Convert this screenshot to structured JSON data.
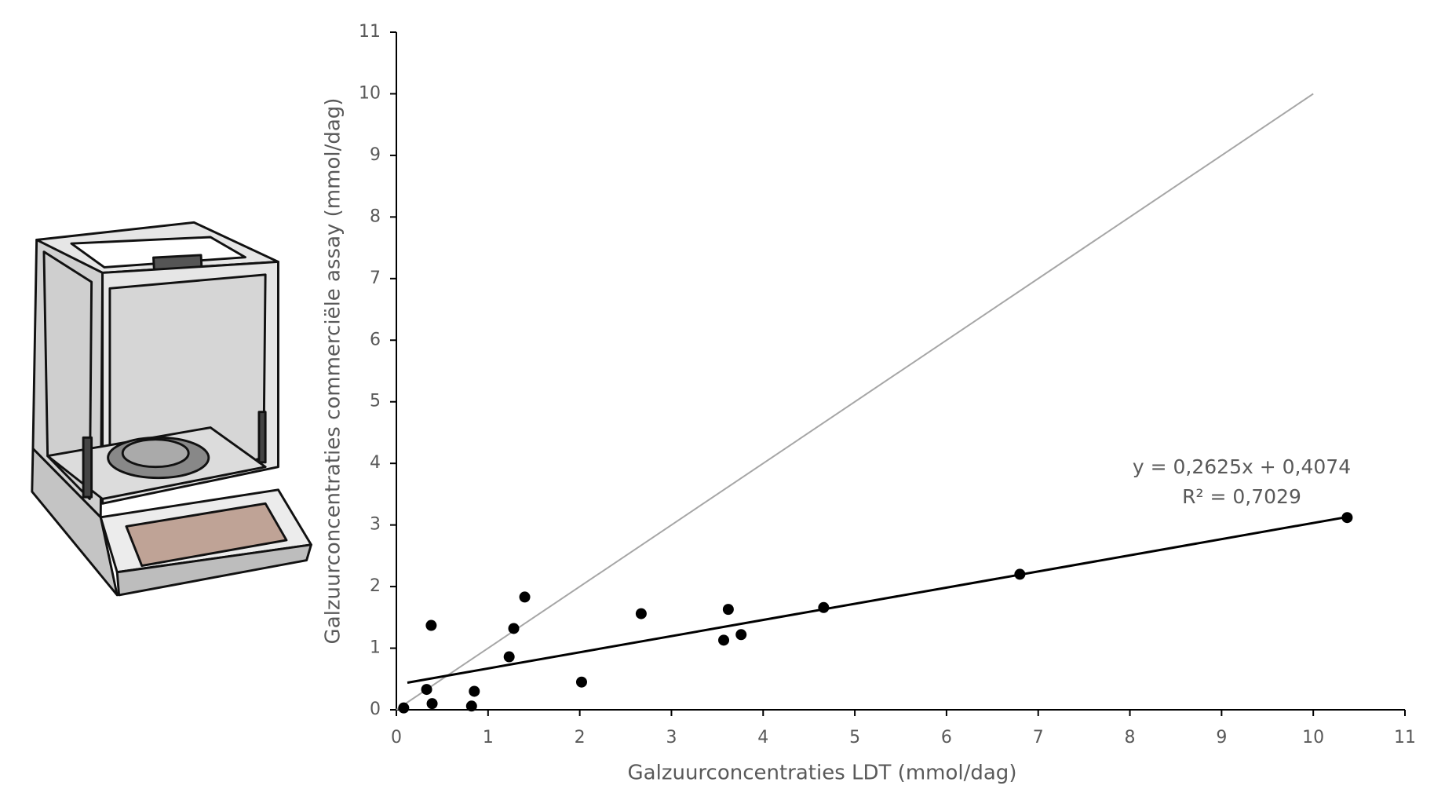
{
  "chart_data": {
    "type": "scatter",
    "x_label": "Galzuurconcentraties LDT (mmol/dag)",
    "y_label": "Galzuurconcentraties commerciële assay (mmol/dag)",
    "annotations": [
      "y = 0,2625x + 0,4074",
      "R² = 0,7029"
    ],
    "color": "#000000",
    "x": [
      0.08,
      0.33,
      0.38,
      0.39,
      0.82,
      0.85,
      1.23,
      1.28,
      1.4,
      2.02,
      2.67,
      3.57,
      3.62,
      3.76,
      4.66,
      6.8,
      10.37
    ],
    "values": [
      0.03,
      0.33,
      1.37,
      0.1,
      0.06,
      0.3,
      0.86,
      1.32,
      1.83,
      0.45,
      1.56,
      1.13,
      1.63,
      1.22,
      1.66,
      2.2,
      3.12
    ],
    "trendline": {
      "x": [
        0.12,
        10.37
      ],
      "y": [
        0.44,
        3.13
      ],
      "color": "#000000"
    },
    "reference_line": {
      "x": [
        0,
        10
      ],
      "y": [
        0,
        10
      ],
      "color": "#a6a6a6"
    },
    "xlim": [
      0,
      11
    ],
    "xticks": [
      0,
      1,
      2,
      3,
      4,
      5,
      6,
      7,
      8,
      9,
      10,
      11
    ],
    "ylim": [
      0,
      11
    ],
    "yticks": [
      0,
      1,
      2,
      3,
      4,
      5,
      6,
      7,
      8,
      9,
      10,
      11
    ],
    "grid": false
  }
}
